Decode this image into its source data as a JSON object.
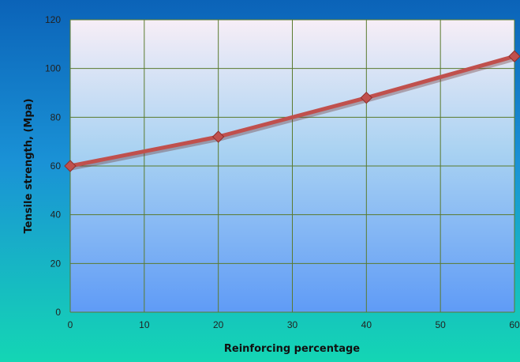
{
  "chart_data": {
    "type": "line",
    "title": "",
    "xlabel": "Reinforcing percentage",
    "ylabel": "Tensile strength,  (Mpa)",
    "xlim": [
      0,
      60
    ],
    "ylim": [
      0,
      120
    ],
    "x_ticks": [
      0,
      10,
      20,
      30,
      40,
      50,
      60
    ],
    "y_ticks": [
      0,
      20,
      40,
      60,
      80,
      100,
      120
    ],
    "grid": true,
    "legend": "none",
    "series": [
      {
        "x": [
          0,
          20,
          40,
          60
        ],
        "y": [
          60,
          72,
          88,
          105
        ],
        "color": "#c0504d",
        "marker": "diamond"
      }
    ]
  },
  "colors": {
    "background_top": "#0b63b8",
    "background_bottom": "#14d6b4",
    "plot_top": "#f7eef7",
    "plot_bottom": "#5f9bf6",
    "gridline": "#5a7a2e",
    "line": "#c0504d"
  }
}
